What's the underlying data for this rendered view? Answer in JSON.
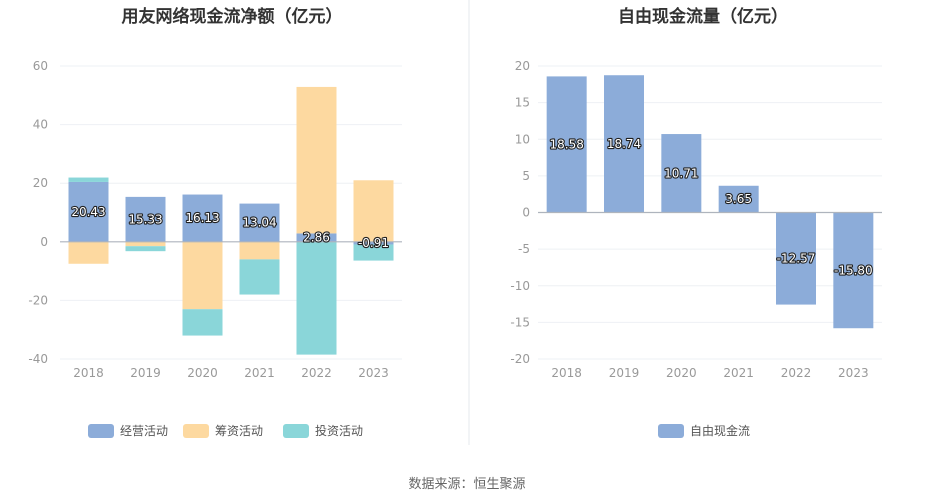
{
  "source": "数据来源：恒生聚源",
  "chart_data": [
    {
      "type": "bar",
      "stacked": true,
      "title": "用友网络现金流净额（亿元）",
      "categories": [
        "2018",
        "2019",
        "2020",
        "2021",
        "2022",
        "2023"
      ],
      "ylim": [
        -40,
        60
      ],
      "yticks": [
        -40,
        -20,
        0,
        20,
        40,
        60
      ],
      "series": [
        {
          "name": "经营活动",
          "color": "#8cacd9",
          "values": [
            20.43,
            15.33,
            16.13,
            13.04,
            2.86,
            -0.91
          ],
          "show_labels": true
        },
        {
          "name": "筹资活动",
          "color": "#fdd9a0",
          "values": [
            -7.5,
            -1.5,
            -23.0,
            -6.0,
            50.0,
            21.0
          ],
          "show_labels": false
        },
        {
          "name": "投资活动",
          "color": "#8ad6d9",
          "values": [
            1.5,
            -1.7,
            -9.0,
            -12.0,
            -38.5,
            -5.5
          ],
          "show_labels": false
        }
      ],
      "legend": "bottom"
    },
    {
      "type": "bar",
      "title": "自由现金流量（亿元）",
      "categories": [
        "2018",
        "2019",
        "2020",
        "2021",
        "2022",
        "2023"
      ],
      "ylim": [
        -20,
        20
      ],
      "yticks": [
        -20,
        -15,
        -10,
        -5,
        0,
        5,
        10,
        15,
        20
      ],
      "series": [
        {
          "name": "自由现金流",
          "color": "#8cacd9",
          "values": [
            18.58,
            18.74,
            10.71,
            3.65,
            -12.57,
            -15.8
          ],
          "labels": [
            "18.58",
            "18.74",
            "10.71",
            "3.65",
            "-12.57",
            "-15.80"
          ],
          "show_labels": true
        }
      ],
      "legend": "bottom"
    }
  ]
}
